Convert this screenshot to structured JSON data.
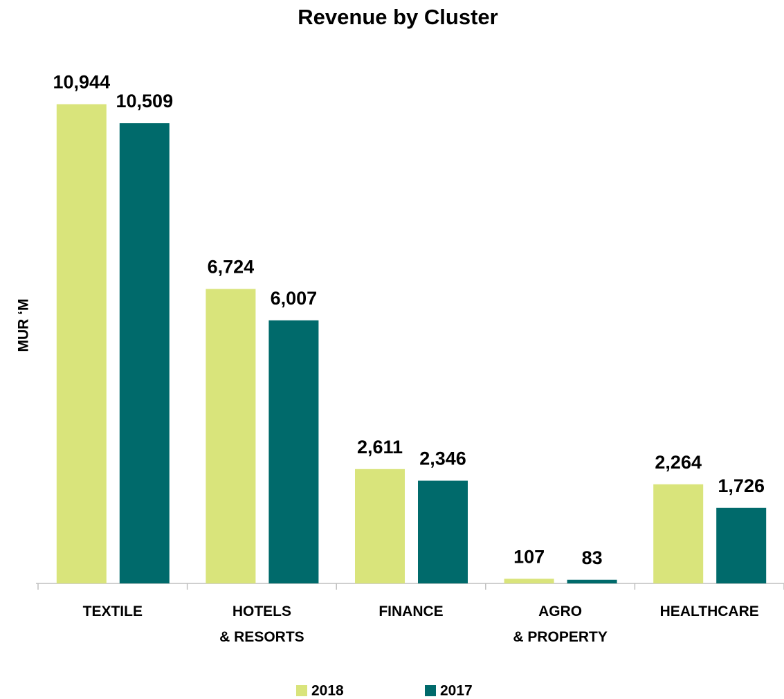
{
  "chart_data": {
    "type": "bar",
    "title": "Revenue by Cluster",
    "y_label": "MUR ‘M",
    "categories": [
      "TEXTILE",
      "HOTELS\n& RESORTS",
      "FINANCE",
      "AGRO\n& PROPERTY",
      "HEALTHCARE"
    ],
    "series": [
      {
        "name": "2018",
        "color": "#d9e47b",
        "values": [
          10944,
          6724,
          2611,
          107,
          2264
        ],
        "value_labels": [
          "10,944",
          "6,724",
          "2,611",
          "107",
          "2,264"
        ]
      },
      {
        "name": "2017",
        "color": "#006a6b",
        "values": [
          10509,
          6007,
          2346,
          83,
          1726
        ],
        "value_labels": [
          "10,509",
          "6,007",
          "2,346",
          "83",
          "1,726"
        ]
      }
    ],
    "ylim": [
      0,
      11000
    ]
  }
}
